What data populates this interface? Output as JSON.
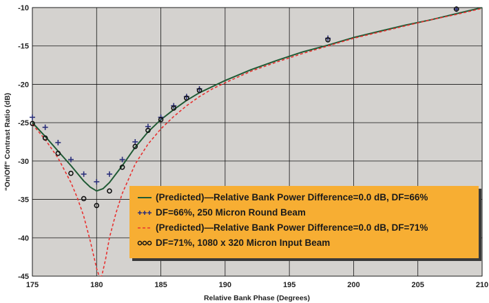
{
  "chart_data": {
    "type": "line",
    "xlabel": "Relative Bank Phase (Degrees)",
    "ylabel": "“On/Off” Contrast Ratio (dB)",
    "xlim": [
      175,
      210
    ],
    "ylim": [
      -45,
      -10
    ],
    "x_ticks": [
      175,
      180,
      185,
      190,
      195,
      200,
      205,
      210
    ],
    "y_ticks": [
      -10,
      -15,
      -20,
      -25,
      -30,
      -35,
      -40,
      -45
    ],
    "grid": true,
    "legend_position": "bottom-right",
    "colors": {
      "plot_bg": "#d4d2cf",
      "grid": "#111111",
      "legend_bg": "#f7ae33",
      "green_line": "#1f5a34",
      "red_dashed": "#e8302f",
      "plus_marker": "#2a2f7a",
      "circle_marker": "#111111"
    },
    "series": [
      {
        "name": "(Predicted)—Relative Bank Power Difference=0.0 dB, DF=66%",
        "style": "solid-line",
        "x": [
          175,
          176,
          177,
          178,
          179,
          179.5,
          180,
          180.5,
          181,
          182,
          183,
          184,
          185,
          186,
          187,
          188,
          189,
          190,
          192,
          194,
          196,
          198,
          200,
          202,
          204,
          206,
          208,
          210
        ],
        "y": [
          -25.0,
          -26.8,
          -28.7,
          -30.6,
          -32.6,
          -33.4,
          -33.9,
          -33.6,
          -32.8,
          -30.6,
          -28.2,
          -26.2,
          -24.6,
          -23.3,
          -22.1,
          -21.1,
          -20.3,
          -19.5,
          -18.1,
          -16.9,
          -15.8,
          -14.9,
          -13.9,
          -13.1,
          -12.3,
          -11.6,
          -10.8,
          -10.0
        ]
      },
      {
        "name": "DF=66%, 250 Micron Round Beam",
        "style": "plus-markers",
        "x": [
          175,
          176,
          177,
          178,
          179,
          180,
          181,
          182,
          183,
          184,
          185,
          186,
          187,
          188,
          198,
          208
        ],
        "y": [
          -24.3,
          -25.6,
          -27.6,
          -29.8,
          -31.7,
          -32.7,
          -31.7,
          -29.8,
          -27.5,
          -25.5,
          -24.3,
          -22.8,
          -21.6,
          -20.6,
          -14.0,
          -10.2
        ]
      },
      {
        "name": "(Predicted)—Relative Bank Power Difference=0.0 dB, DF=71%",
        "style": "dashed-line",
        "x": [
          175,
          176,
          177,
          178,
          178.5,
          179,
          179.5,
          180,
          180.2,
          180.4,
          180.7,
          181,
          181.5,
          182,
          183,
          184,
          185,
          186,
          187,
          188,
          189,
          190,
          192,
          194,
          196,
          198,
          200,
          202,
          204,
          206,
          208,
          210
        ],
        "y": [
          -25.2,
          -27.2,
          -29.6,
          -32.8,
          -34.8,
          -37.2,
          -40.4,
          -44.0,
          -45.0,
          -45.0,
          -42.8,
          -40.0,
          -36.8,
          -34.2,
          -30.4,
          -27.8,
          -25.8,
          -24.2,
          -22.8,
          -21.6,
          -20.6,
          -19.8,
          -18.3,
          -17.1,
          -16.0,
          -15.0,
          -14.0,
          -13.2,
          -12.4,
          -11.6,
          -10.9,
          -10.1
        ]
      },
      {
        "name": "DF=71%, 1080 x 320 Micron Input Beam",
        "style": "circle-markers",
        "x": [
          175,
          176,
          177,
          178,
          179,
          180,
          181,
          182,
          183,
          184,
          185,
          186,
          187,
          188,
          198,
          208
        ],
        "y": [
          -25.1,
          -27.0,
          -29.0,
          -31.6,
          -34.9,
          -35.8,
          -33.9,
          -30.8,
          -28.1,
          -26.0,
          -24.6,
          -23.1,
          -21.8,
          -20.8,
          -14.2,
          -10.2
        ]
      }
    ]
  }
}
